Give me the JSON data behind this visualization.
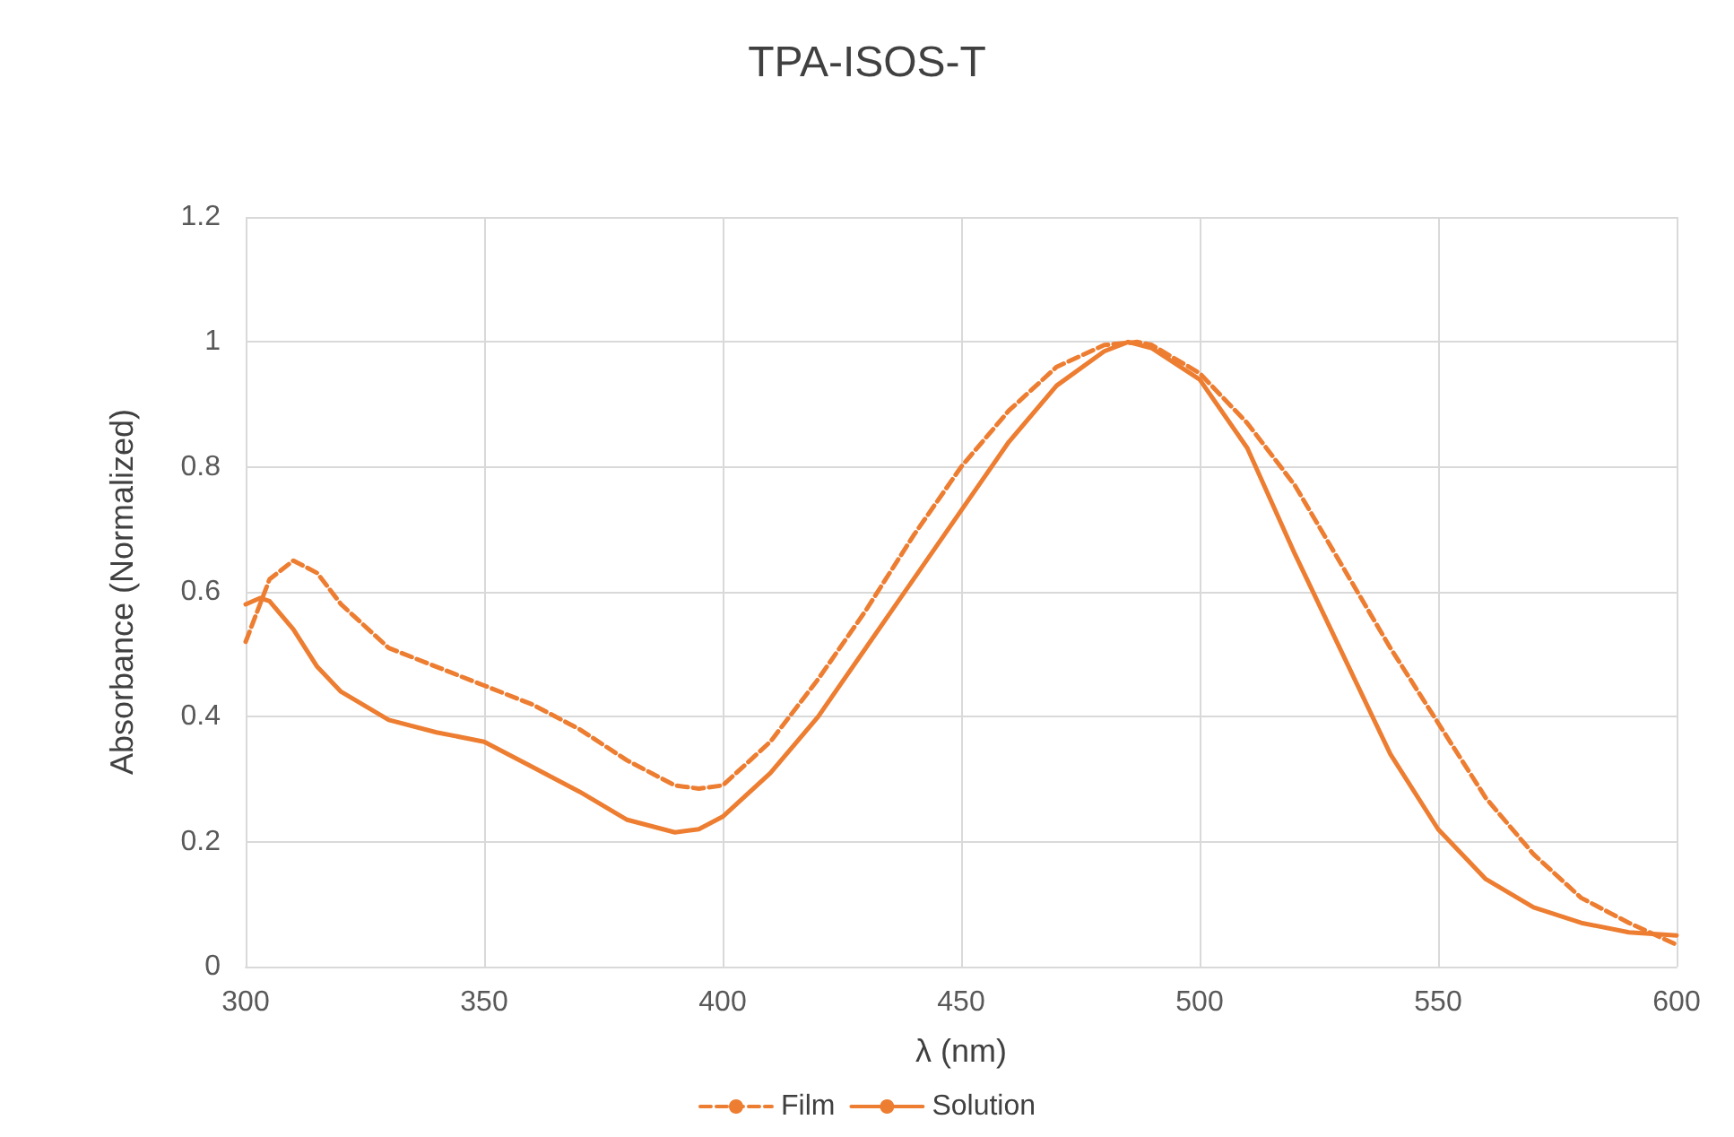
{
  "chart_data": {
    "type": "line",
    "title": "TPA-ISOS-T",
    "xlabel": "λ (nm)",
    "ylabel": "Absorbance (Normalized)",
    "xlim": [
      300,
      600
    ],
    "xticks": [
      300,
      350,
      400,
      450,
      500,
      550,
      600
    ],
    "ylim": [
      0,
      1.2
    ],
    "yticks": [
      0,
      0.2,
      0.4,
      0.6,
      0.8,
      1,
      1.2
    ],
    "grid": true,
    "legend": "bottom",
    "marker": "none",
    "series": [
      {
        "name": "Film",
        "color": "#ed7d31",
        "line_style": "dashed",
        "x": [
          300,
          305,
          310,
          315,
          320,
          330,
          340,
          350,
          360,
          370,
          380,
          390,
          395,
          400,
          410,
          420,
          430,
          440,
          450,
          460,
          470,
          480,
          487,
          490,
          500,
          510,
          520,
          530,
          540,
          550,
          560,
          570,
          580,
          590,
          600
        ],
        "values": [
          0.52,
          0.62,
          0.65,
          0.63,
          0.58,
          0.51,
          0.48,
          0.45,
          0.42,
          0.38,
          0.33,
          0.29,
          0.285,
          0.29,
          0.36,
          0.46,
          0.57,
          0.69,
          0.8,
          0.89,
          0.96,
          0.995,
          1,
          0.995,
          0.95,
          0.87,
          0.77,
          0.64,
          0.51,
          0.39,
          0.27,
          0.18,
          0.11,
          0.07,
          0.035
        ]
      },
      {
        "name": "Solution",
        "color": "#ed7d31",
        "line_style": "solid",
        "x": [
          300,
          303,
          305,
          310,
          315,
          320,
          330,
          340,
          350,
          360,
          370,
          380,
          390,
          395,
          400,
          410,
          420,
          430,
          440,
          450,
          460,
          470,
          480,
          485,
          490,
          500,
          510,
          520,
          530,
          540,
          550,
          560,
          570,
          580,
          590,
          600
        ],
        "values": [
          0.58,
          0.59,
          0.585,
          0.54,
          0.48,
          0.44,
          0.395,
          0.375,
          0.36,
          0.32,
          0.28,
          0.235,
          0.215,
          0.22,
          0.24,
          0.31,
          0.4,
          0.51,
          0.62,
          0.73,
          0.84,
          0.93,
          0.985,
          1,
          0.99,
          0.94,
          0.83,
          0.66,
          0.5,
          0.34,
          0.22,
          0.14,
          0.095,
          0.07,
          0.055,
          0.05
        ]
      }
    ]
  }
}
